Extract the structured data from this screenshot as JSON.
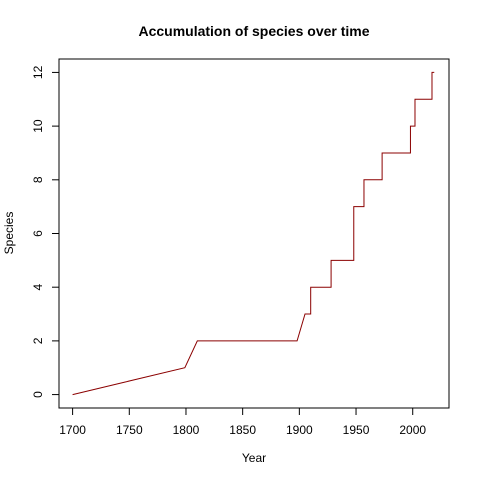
{
  "chart_data": {
    "type": "line",
    "title": "Accumulation of species over time",
    "xlabel": "Year",
    "ylabel": "Species",
    "xlim": [
      1688,
      2032
    ],
    "ylim": [
      -0.5,
      12.5
    ],
    "x_ticks": [
      1700,
      1750,
      1800,
      1850,
      1900,
      1950,
      2000
    ],
    "y_ticks": [
      0,
      2,
      4,
      6,
      8,
      10,
      12
    ],
    "grid": false,
    "series": [
      {
        "color": "#8b0000",
        "x": [
          1700,
          1799,
          1810,
          1898,
          1905,
          1910,
          1910,
          1928,
          1928,
          1948,
          1948,
          1957,
          1957,
          1973,
          1973,
          1998,
          1998,
          2002,
          2002,
          2012,
          2012,
          2017,
          2017,
          2019
        ],
        "y": [
          0,
          1,
          2,
          2,
          3,
          3,
          4,
          4,
          5,
          5,
          7,
          7,
          8,
          8,
          9,
          9,
          10,
          10,
          11,
          11,
          11,
          11,
          12,
          12
        ]
      }
    ]
  }
}
